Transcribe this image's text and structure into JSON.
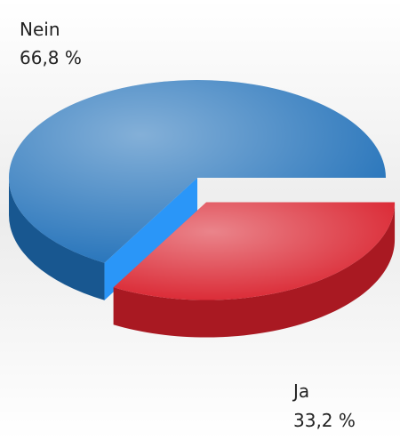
{
  "chart_data": {
    "type": "pie",
    "categories": [
      "Nein",
      "Ja"
    ],
    "values": [
      66.8,
      33.2
    ],
    "value_labels": [
      "66,8 %",
      "33,2 %"
    ],
    "colors": [
      "#1f6fb8",
      "#d9202c"
    ]
  }
}
